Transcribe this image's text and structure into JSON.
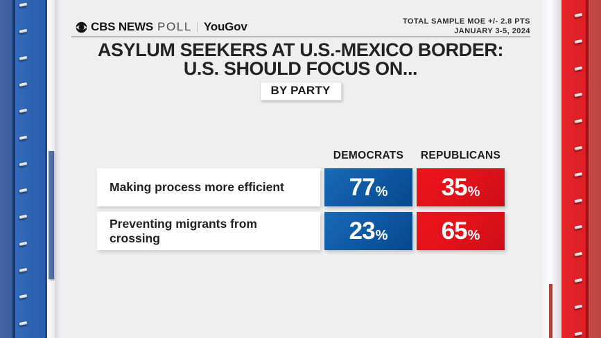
{
  "brand": {
    "cbs_news": "CBS NEWS",
    "poll": "POLL",
    "partner": "YouGov"
  },
  "meta": {
    "moe": "TOTAL SAMPLE MOE +/- 2.8 PTS",
    "dates": "JANUARY 3-5, 2024"
  },
  "title": {
    "line1": "ASYLUM SEEKERS AT U.S.-MEXICO BORDER:",
    "line2": "U.S. SHOULD FOCUS ON...",
    "badge": "BY PARTY"
  },
  "chart_data": {
    "type": "table",
    "columns": [
      "DEMOCRATS",
      "REPUBLICANS"
    ],
    "rows": [
      {
        "label": "Making process more efficient",
        "values": [
          77,
          35
        ]
      },
      {
        "label": "Preventing migrants from crossing",
        "values": [
          23,
          65
        ]
      }
    ],
    "value_suffix": "%",
    "colors": {
      "democrats": "#0f5aa5",
      "republicans": "#e0111a"
    }
  }
}
